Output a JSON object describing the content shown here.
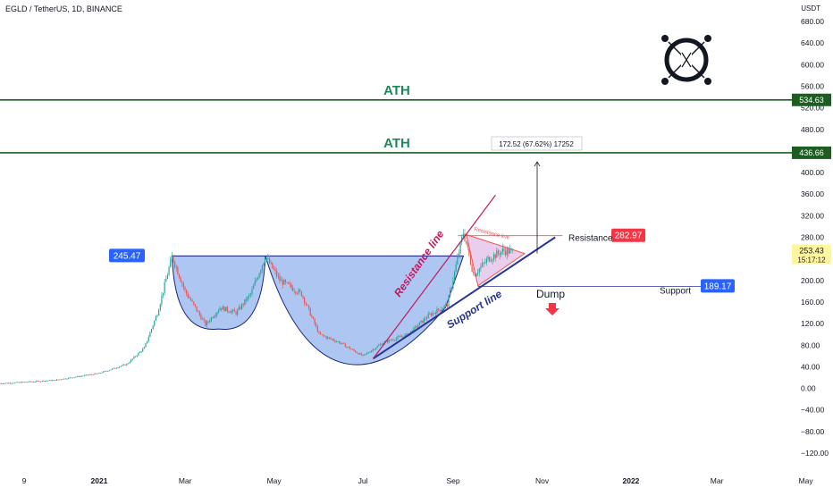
{
  "header": {
    "symbol": "EGLD / TetherUS, 1D, BINANCE",
    "currency": "USDT"
  },
  "chart_data": {
    "type": "candlestick",
    "symbol": "EGLD / TetherUS",
    "interval": "1D",
    "exchange": "BINANCE",
    "y_axis_labels": [
      "680.00",
      "640.00",
      "600.00",
      "560.00",
      "520.00",
      "480.00",
      "440.00",
      "400.00",
      "360.00",
      "320.00",
      "280.00",
      "240.00",
      "200.00",
      "160.00",
      "120.00",
      "80.00",
      "40.00",
      "0.00",
      "−40.00",
      "−80.00",
      "−120.00"
    ],
    "x_axis_labels": [
      "9",
      "2021",
      "Mar",
      "May",
      "Jul",
      "Sep",
      "Nov",
      "2022",
      "Mar",
      "May"
    ],
    "ylim": [
      -130,
      700
    ],
    "price_path": [
      [
        "2020-09",
        5
      ],
      [
        "2020-10",
        7
      ],
      [
        "2020-11",
        10
      ],
      [
        "2020-12",
        15
      ],
      [
        "2021-01",
        28
      ],
      [
        "2021-01-20",
        45
      ],
      [
        "2021-02-01",
        75
      ],
      [
        "2021-02-10",
        140
      ],
      [
        "2021-02-20",
        245
      ],
      [
        "2021-03-01",
        180
      ],
      [
        "2021-03-15",
        118
      ],
      [
        "2021-03-25",
        150
      ],
      [
        "2021-04-05",
        140
      ],
      [
        "2021-04-15",
        175
      ],
      [
        "2021-04-25",
        245
      ],
      [
        "2021-05-05",
        200
      ],
      [
        "2021-05-20",
        175
      ],
      [
        "2021-06-01",
        100
      ],
      [
        "2021-06-15",
        85
      ],
      [
        "2021-07-01",
        60
      ],
      [
        "2021-07-15",
        85
      ],
      [
        "2021-08-01",
        100
      ],
      [
        "2021-08-15",
        135
      ],
      [
        "2021-08-28",
        155
      ],
      [
        "2021-09-08",
        290
      ],
      [
        "2021-09-15",
        210
      ],
      [
        "2021-09-25",
        240
      ],
      [
        "2021-10-05",
        255
      ],
      [
        "2021-10-12",
        253
      ]
    ],
    "horizontal_levels": [
      {
        "label": "ATH",
        "price": 534.63
      },
      {
        "label": "ATH",
        "price": 436.66
      },
      {
        "label": "Resistance",
        "price": 282.97
      },
      {
        "label": "Support",
        "price": 189.17
      },
      {
        "label": "",
        "price": 245.47
      }
    ],
    "current_price": "253.43",
    "countdown": "15:17:12",
    "annotations": {
      "measure": "172.52 (67.62%) 17252",
      "resistance_line": "Resistance line",
      "support_line": "Support line",
      "resistance_line_small": "Resistance line",
      "dump": "Dump",
      "resistance": "Resistance",
      "support": "Support"
    },
    "colors": {
      "up": "#26a69a",
      "down": "#ef5350",
      "ath_line": "#1b5e20",
      "ath_text": "#1b8a5a",
      "cup_fill": "#5b8ee6",
      "support_label": "#2962ff",
      "resistance_label": "#f23645",
      "current_label": "#fff59d",
      "resistance_line": "#c2185b",
      "trend_line": "#283593"
    },
    "logo": "EGLD-logo-icon"
  }
}
